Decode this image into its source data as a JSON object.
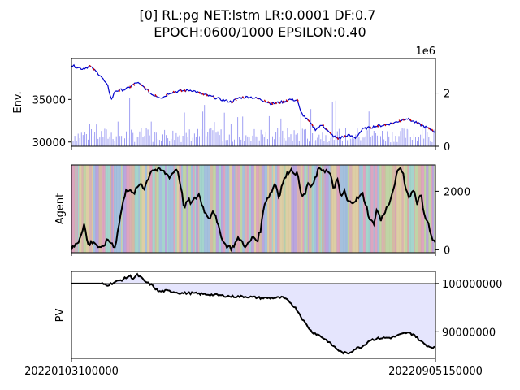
{
  "chart_data": [
    {
      "type": "line",
      "panel": "env",
      "title_line1": "[0] RL:pg NET:lstm LR:0.0001 DF:0.7",
      "title_line2": "EPOCH:0600/1000 EPSILON:0.40",
      "ylabel": "Env.",
      "y_ticks": [
        "30000",
        "35000"
      ],
      "y_tick_values": [
        30000,
        35000
      ],
      "ylim": [
        29500,
        39800
      ],
      "right_y_ticks": [
        "0",
        "2"
      ],
      "right_y_tick_values": [
        0,
        2
      ],
      "right_ylim": [
        0,
        3.3
      ],
      "right_axis_offset": "1e6",
      "price_points": [
        [
          0,
          39000
        ],
        [
          0.03,
          38600
        ],
        [
          0.05,
          38900
        ],
        [
          0.08,
          37800
        ],
        [
          0.1,
          36500
        ],
        [
          0.11,
          35000
        ],
        [
          0.12,
          36000
        ],
        [
          0.15,
          36200
        ],
        [
          0.18,
          37000
        ],
        [
          0.2,
          36400
        ],
        [
          0.22,
          35600
        ],
        [
          0.25,
          35200
        ],
        [
          0.27,
          35800
        ],
        [
          0.3,
          36000
        ],
        [
          0.33,
          36100
        ],
        [
          0.36,
          35600
        ],
        [
          0.38,
          35400
        ],
        [
          0.41,
          35000
        ],
        [
          0.44,
          34700
        ],
        [
          0.46,
          35200
        ],
        [
          0.49,
          35300
        ],
        [
          0.52,
          35000
        ],
        [
          0.55,
          34500
        ],
        [
          0.58,
          34700
        ],
        [
          0.6,
          35000
        ],
        [
          0.62,
          34900
        ],
        [
          0.63,
          33500
        ],
        [
          0.65,
          32500
        ],
        [
          0.67,
          31500
        ],
        [
          0.69,
          32000
        ],
        [
          0.71,
          31000
        ],
        [
          0.73,
          30400
        ],
        [
          0.76,
          30800
        ],
        [
          0.78,
          30500
        ],
        [
          0.8,
          31500
        ],
        [
          0.83,
          31800
        ],
        [
          0.86,
          32000
        ],
        [
          0.89,
          32300
        ],
        [
          0.92,
          32800
        ],
        [
          0.95,
          32200
        ],
        [
          0.97,
          31800
        ],
        [
          1.0,
          31200
        ]
      ],
      "volume_description": "blue semi-transparent bars",
      "colors": {
        "price": "#0000cc",
        "price_alt": "#cc0000",
        "volume": "#7f7fef"
      }
    },
    {
      "type": "line",
      "panel": "agent",
      "ylabel": "Agent",
      "y_ticks": [
        "0",
        "2000"
      ],
      "y_tick_values": [
        0,
        2000
      ],
      "ylim": [
        -100,
        2900
      ],
      "points": [
        [
          0,
          0
        ],
        [
          0.02,
          300
        ],
        [
          0.035,
          900
        ],
        [
          0.045,
          150
        ],
        [
          0.06,
          300
        ],
        [
          0.08,
          0
        ],
        [
          0.1,
          350
        ],
        [
          0.12,
          100
        ],
        [
          0.135,
          1200
        ],
        [
          0.15,
          2100
        ],
        [
          0.17,
          1900
        ],
        [
          0.19,
          2300
        ],
        [
          0.2,
          2100
        ],
        [
          0.22,
          2750
        ],
        [
          0.25,
          2700
        ],
        [
          0.27,
          2500
        ],
        [
          0.29,
          2800
        ],
        [
          0.3,
          2200
        ],
        [
          0.31,
          1400
        ],
        [
          0.32,
          1700
        ],
        [
          0.33,
          1600
        ],
        [
          0.35,
          1900
        ],
        [
          0.36,
          1500
        ],
        [
          0.37,
          1200
        ],
        [
          0.38,
          1100
        ],
        [
          0.39,
          1400
        ],
        [
          0.4,
          900
        ],
        [
          0.42,
          200
        ],
        [
          0.44,
          50
        ],
        [
          0.46,
          400
        ],
        [
          0.48,
          100
        ],
        [
          0.5,
          450
        ],
        [
          0.51,
          300
        ],
        [
          0.52,
          700
        ],
        [
          0.53,
          1600
        ],
        [
          0.55,
          2000
        ],
        [
          0.56,
          2300
        ],
        [
          0.57,
          1800
        ],
        [
          0.58,
          2300
        ],
        [
          0.6,
          2750
        ],
        [
          0.62,
          2600
        ],
        [
          0.63,
          2000
        ],
        [
          0.64,
          1800
        ],
        [
          0.65,
          2300
        ],
        [
          0.66,
          2100
        ],
        [
          0.68,
          2800
        ],
        [
          0.7,
          2700
        ],
        [
          0.71,
          2600
        ],
        [
          0.72,
          2100
        ],
        [
          0.73,
          2400
        ],
        [
          0.74,
          1800
        ],
        [
          0.75,
          2000
        ],
        [
          0.76,
          1600
        ],
        [
          0.78,
          1700
        ],
        [
          0.8,
          1900
        ],
        [
          0.81,
          1500
        ],
        [
          0.82,
          1000
        ],
        [
          0.83,
          900
        ],
        [
          0.84,
          1400
        ],
        [
          0.85,
          1000
        ],
        [
          0.86,
          1300
        ],
        [
          0.87,
          1500
        ],
        [
          0.88,
          1800
        ],
        [
          0.89,
          2400
        ],
        [
          0.9,
          2800
        ],
        [
          0.91,
          2700
        ],
        [
          0.92,
          2000
        ],
        [
          0.93,
          1800
        ],
        [
          0.94,
          2100
        ],
        [
          0.95,
          1600
        ],
        [
          0.96,
          1900
        ],
        [
          0.97,
          1200
        ],
        [
          0.98,
          900
        ],
        [
          0.99,
          400
        ],
        [
          1.0,
          200
        ]
      ],
      "background_description": "multi-coloured semi-transparent vertical bands",
      "colors": {
        "line": "#000000"
      }
    },
    {
      "type": "area",
      "panel": "pv",
      "ylabel": "PV",
      "y_ticks": [
        "90000000",
        "100000000"
      ],
      "y_tick_values": [
        90000000,
        100000000
      ],
      "ylim": [
        84500000,
        102500000
      ],
      "baseline": 100000000,
      "points": [
        [
          0,
          100000000
        ],
        [
          0.05,
          100000000
        ],
        [
          0.08,
          100000000
        ],
        [
          0.1,
          99700000
        ],
        [
          0.12,
          100300000
        ],
        [
          0.14,
          100800000
        ],
        [
          0.16,
          101600000
        ],
        [
          0.17,
          101000000
        ],
        [
          0.18,
          101800000
        ],
        [
          0.19,
          101300000
        ],
        [
          0.2,
          100500000
        ],
        [
          0.22,
          99700000
        ],
        [
          0.24,
          98300000
        ],
        [
          0.26,
          98500000
        ],
        [
          0.28,
          98300000
        ],
        [
          0.3,
          98000000
        ],
        [
          0.33,
          98000000
        ],
        [
          0.36,
          97800000
        ],
        [
          0.4,
          97600000
        ],
        [
          0.44,
          97300000
        ],
        [
          0.48,
          97300000
        ],
        [
          0.52,
          97000000
        ],
        [
          0.55,
          97000000
        ],
        [
          0.58,
          97100000
        ],
        [
          0.6,
          96200000
        ],
        [
          0.62,
          94500000
        ],
        [
          0.64,
          92000000
        ],
        [
          0.66,
          90000000
        ],
        [
          0.68,
          89300000
        ],
        [
          0.7,
          88300000
        ],
        [
          0.72,
          87000000
        ],
        [
          0.74,
          85800000
        ],
        [
          0.76,
          85500000
        ],
        [
          0.78,
          86500000
        ],
        [
          0.8,
          87000000
        ],
        [
          0.82,
          88300000
        ],
        [
          0.85,
          88700000
        ],
        [
          0.88,
          88800000
        ],
        [
          0.9,
          89300000
        ],
        [
          0.92,
          89800000
        ],
        [
          0.94,
          89500000
        ],
        [
          0.96,
          88000000
        ],
        [
          0.98,
          87000000
        ],
        [
          1.0,
          86700000
        ]
      ],
      "x_ticks": [
        "20220103100000",
        "20220905150000"
      ],
      "colors": {
        "line": "#000000",
        "fill": "#e5e5fd",
        "baseline": "#808080"
      }
    }
  ]
}
